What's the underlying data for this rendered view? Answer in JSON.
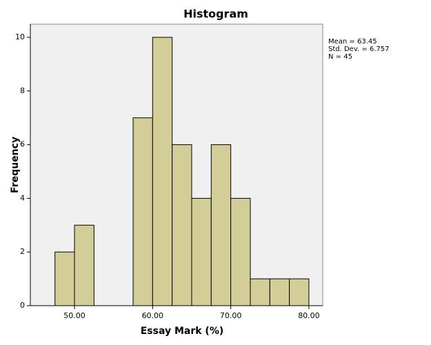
{
  "chart_data": {
    "type": "histogram",
    "title": "Histogram",
    "x_label": "Essay Mark (%)",
    "y_label": "Frequency",
    "bins": [
      47.5,
      50,
      52.5,
      55,
      57.5,
      60,
      62.5,
      65,
      67.5,
      70,
      72.5,
      75,
      77.5,
      80
    ],
    "counts": [
      2,
      3,
      0,
      0,
      7,
      10,
      6,
      4,
      6,
      4,
      1,
      1,
      1
    ],
    "color": "#d3ce97",
    "xlim": [
      44.35,
      81.77
    ],
    "xticks": [
      {
        "value": 50,
        "label": "50.00"
      },
      {
        "value": 60,
        "label": "60.00"
      },
      {
        "value": 70,
        "label": "70.00"
      },
      {
        "value": 80,
        "label": "80.00"
      }
    ],
    "ylim": [
      0,
      10.49
    ],
    "yticks": [
      0,
      2,
      4,
      6,
      8,
      10
    ],
    "annotations": [
      "Mean = 63.45",
      "Std. Dev. = 6.757",
      "N = 45"
    ]
  }
}
